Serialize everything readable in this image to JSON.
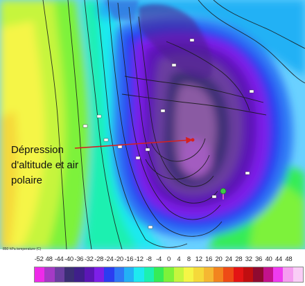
{
  "caption": {
    "line1": "Dépression",
    "line2": "d'altitude et air",
    "line3": "polaire"
  },
  "map": {
    "footer_label": "850 hPa temperature (C)",
    "background_color": "#6ad1ff",
    "arrow_color": "#d42020",
    "isobar_color": "#1a1a1a",
    "marker_color": "#3ec94a"
  },
  "legend": {
    "labels": [
      "-52",
      "48",
      "-44",
      "-40",
      "-36",
      "-32",
      "-28",
      "-24",
      "-20",
      "-16",
      "-12",
      "-8",
      "-4",
      "0",
      "4",
      "8",
      "12",
      "16",
      "20",
      "24",
      "28",
      "32",
      "36",
      "40",
      "44",
      "48"
    ],
    "colors": [
      "#ee2ae9",
      "#a53ac5",
      "#6b3ea0",
      "#3b2f74",
      "#3f1f8a",
      "#5b16b5",
      "#7d1fe8",
      "#2b3df0",
      "#2e78f5",
      "#23b1f5",
      "#1ee9f0",
      "#1cf0b0",
      "#35ec56",
      "#7df23a",
      "#c6f53e",
      "#f5f546",
      "#f5d93a",
      "#f5b732",
      "#f2841f",
      "#ee4b16",
      "#e41414",
      "#c00e10",
      "#8f0a30",
      "#c3128c",
      "#ef3bf0",
      "#f59df0",
      "#f9cdf6"
    ]
  }
}
